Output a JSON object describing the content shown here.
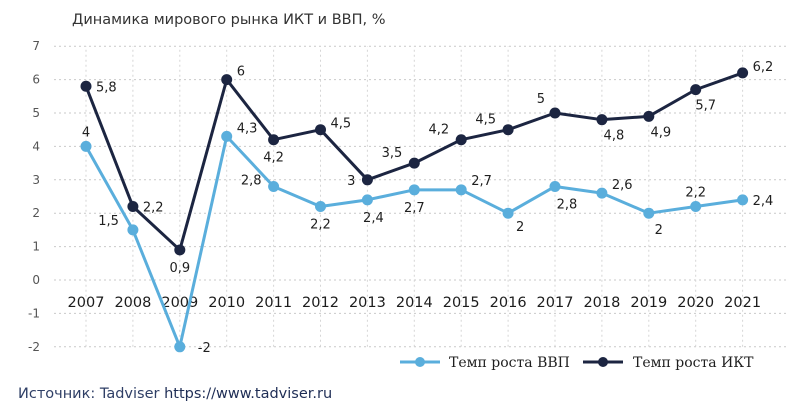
{
  "chart_data": {
    "type": "line",
    "title": "Динамика мирового рынка ИКТ и ВВП, %",
    "categories": [
      "2007",
      "2008",
      "2009",
      "2010",
      "2011",
      "2012",
      "2013",
      "2014",
      "2015",
      "2016",
      "2017",
      "2018",
      "2019",
      "2020",
      "2021"
    ],
    "y_ticks": [
      "7",
      "6",
      "5",
      "4",
      "3",
      "2",
      "1",
      "0",
      "-1",
      "-2"
    ],
    "ylim": [
      -2,
      7
    ],
    "grid": "horizontal dotted",
    "legend_position": "bottom-right",
    "series": [
      {
        "name": "Темп роста ВВП",
        "color": "#5aaedc",
        "values": [
          4,
          1.5,
          -2,
          4.3,
          2.8,
          2.2,
          2.4,
          2.7,
          2.7,
          2,
          2.8,
          2.6,
          2,
          2.2,
          2.4
        ],
        "labels": [
          "4",
          "1,5",
          "-2",
          "4,3",
          "2,8",
          "2,2",
          "2,4",
          "2,7",
          "2,7",
          "2",
          "2,8",
          "2,6",
          "2",
          "2,2",
          "2,4"
        ]
      },
      {
        "name": "Темп роста ИКТ",
        "color": "#1c2541",
        "values": [
          5.8,
          2.2,
          0.9,
          6,
          4.2,
          4.5,
          3,
          3.5,
          4.2,
          4.5,
          5,
          4.8,
          4.9,
          5.7,
          6.2
        ],
        "labels": [
          "5,8",
          "2,2",
          "0,9",
          "6",
          "4,2",
          "4,5",
          "3",
          "3,5",
          "4,2",
          "4,5",
          "5",
          "4,8",
          "4,9",
          "5,7",
          "6,2"
        ]
      }
    ]
  },
  "source": {
    "label": "Источник: Tadviser",
    "url": "https://www.tadviser.ru"
  }
}
